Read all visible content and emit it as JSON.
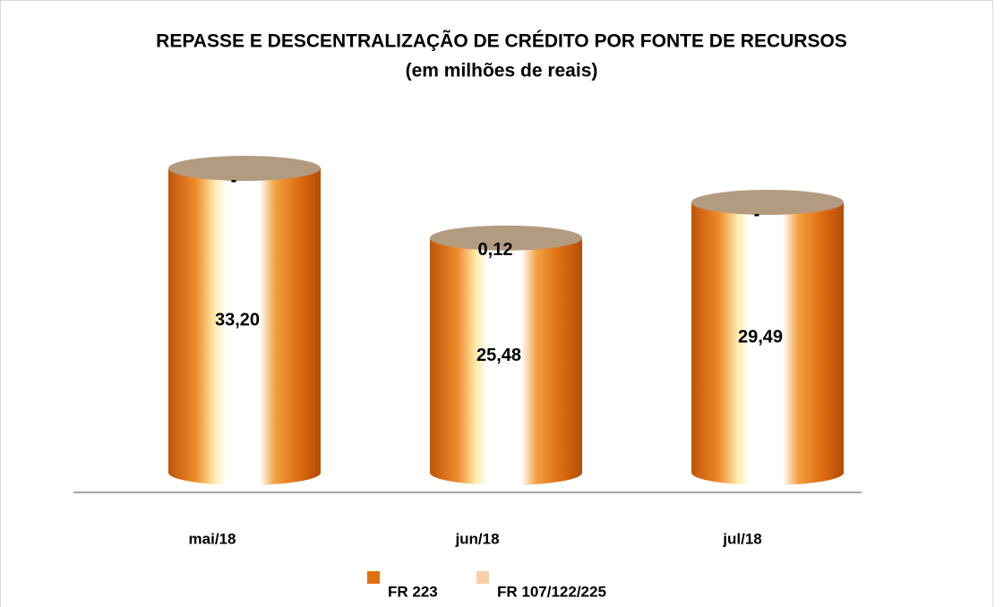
{
  "chart_data": {
    "type": "bar",
    "stacked": true,
    "title": "REPASSE E DESCENTRALIZAÇÃO DE CRÉDITO POR FONTE DE RECURSOS",
    "subtitle": "(em milhões de reais)",
    "categories": [
      "mai/18",
      "jun/18",
      "jul/18"
    ],
    "series": [
      {
        "name": "FR 223",
        "color": "#e0700f",
        "values": [
          33.2,
          25.48,
          29.49
        ],
        "value_labels": [
          "33,20",
          "25,48",
          "29,49"
        ]
      },
      {
        "name": "FR 107/122/225",
        "color": "#f9cfa8",
        "values": [
          0,
          0.12,
          0
        ],
        "value_labels": [
          "-",
          "0,12",
          "-"
        ]
      }
    ],
    "legend": "bottom"
  }
}
